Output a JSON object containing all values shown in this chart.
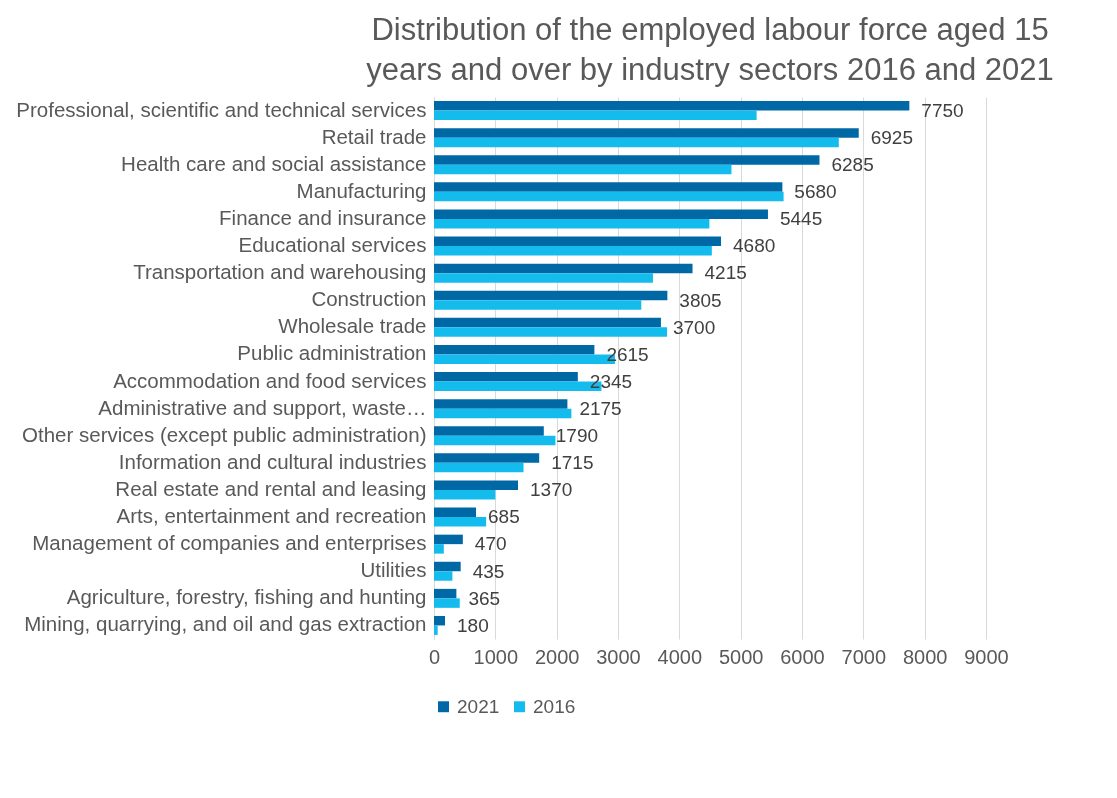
{
  "chart_data": {
    "type": "bar",
    "orientation": "horizontal",
    "title": "Distribution of the employed labour force aged 15 years and over by industry sectors 2016 and 2021",
    "categories": [
      "Professional, scientific and technical services",
      "Retail trade",
      "Health care and social assistance",
      "Manufacturing",
      "Finance and insurance",
      "Educational services",
      "Transportation and warehousing",
      "Construction",
      "Wholesale trade",
      "Public administration",
      "Accommodation and food services",
      "Administrative and support, waste…",
      "Other services (except public administration)",
      "Information and cultural industries",
      "Real estate and rental and leasing",
      "Arts, entertainment and recreation",
      "Management of companies and enterprises",
      "Utilities",
      "Agriculture, forestry, fishing and hunting",
      "Mining, quarrying, and oil and gas extraction"
    ],
    "series": [
      {
        "name": "2021",
        "color": "#0068a5",
        "values": [
          7750,
          6925,
          6285,
          5680,
          5445,
          4680,
          4215,
          3805,
          3700,
          2615,
          2345,
          2175,
          1790,
          1715,
          1370,
          685,
          470,
          435,
          365,
          180
        ],
        "value_labels": [
          "7750",
          "6925",
          "6285",
          "5680",
          "5445",
          "4680",
          "4215",
          "3805",
          "3700",
          "2615",
          "2345",
          "2175",
          "1790",
          "1715",
          "1370",
          "685",
          "470",
          "435",
          "365",
          "180"
        ]
      },
      {
        "name": "2016",
        "color": "#14bcee",
        "values": [
          5260,
          6600,
          4850,
          5700,
          4490,
          4530,
          3570,
          3380,
          3800,
          2950,
          2730,
          2240,
          1980,
          1460,
          1000,
          850,
          160,
          300,
          420,
          60
        ]
      }
    ],
    "xlim": [
      0,
      9000
    ],
    "xticks": [
      0,
      1000,
      2000,
      3000,
      4000,
      5000,
      6000,
      7000,
      8000,
      9000
    ],
    "grid": "x",
    "legend": "bottom"
  }
}
